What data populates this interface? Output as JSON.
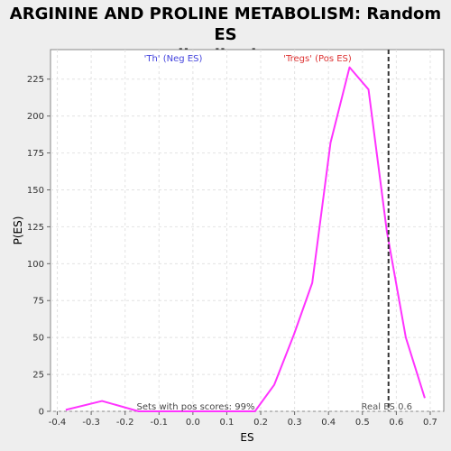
{
  "chart_data": {
    "type": "line",
    "title_line1": "ARGININE AND PROLINE METABOLISM: Random ES",
    "title_line2": "distribution",
    "xlabel": "ES",
    "ylabel": "P(ES)",
    "xlim": [
      -0.42,
      0.74
    ],
    "ylim": [
      0,
      245
    ],
    "x_ticks": [
      -0.4,
      -0.3,
      -0.2,
      -0.1,
      0.0,
      0.1,
      0.2,
      0.3,
      0.4,
      0.5,
      0.6,
      0.7
    ],
    "x_tick_labels": [
      "-0.4",
      "-0.3",
      "-0.2",
      "-0.1",
      "0.0",
      "0.1",
      "0.2",
      "0.3",
      "0.4",
      "0.5",
      "0.6",
      "0.7"
    ],
    "y_ticks": [
      0,
      25,
      50,
      75,
      100,
      125,
      150,
      175,
      200,
      225
    ],
    "y_tick_labels": [
      "0",
      "25",
      "50",
      "75",
      "100",
      "125",
      "150",
      "175",
      "200",
      "225"
    ],
    "grid": true,
    "series": [
      {
        "color": "#ff33ff",
        "x": [
          -0.375,
          -0.268,
          -0.16,
          -0.105,
          0.0,
          0.07,
          0.128,
          0.183,
          0.24,
          0.298,
          0.352,
          0.406,
          0.462,
          0.518,
          0.572,
          0.628,
          0.684
        ],
        "y": [
          1,
          7,
          0,
          0,
          0,
          0,
          0,
          0,
          18,
          52,
          87,
          182,
          233,
          218,
          122,
          50,
          9
        ]
      }
    ],
    "real_es": {
      "x": 0.577,
      "label": "Real ES 0.6",
      "color": "#333333"
    },
    "neg_label": {
      "text": "'Th' (Neg ES)",
      "color": "#4444dd"
    },
    "pos_label": {
      "text": "'Tregs' (Pos ES)",
      "color": "#dd3333"
    },
    "footer_text": "Sets with pos scores: 99%"
  }
}
